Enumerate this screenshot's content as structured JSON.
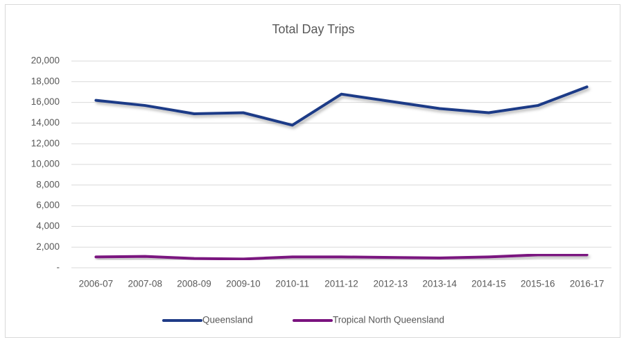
{
  "chart_data": {
    "type": "line",
    "title": "Total Day Trips",
    "categories": [
      "2006-07",
      "2007-08",
      "2008-09",
      "2009-10",
      "2010-11",
      "2011-12",
      "2012-13",
      "2013-14",
      "2014-15",
      "2015-16",
      "2016-17"
    ],
    "series": [
      {
        "name": "Queensland",
        "color": "#1f3b87",
        "values": [
          16200,
          15700,
          14900,
          15000,
          13800,
          16800,
          16100,
          15400,
          15000,
          15700,
          17500
        ]
      },
      {
        "name": "Tropical North Queensland",
        "color": "#7a137f",
        "values": [
          1050,
          1100,
          900,
          850,
          1050,
          1050,
          1000,
          950,
          1050,
          1250,
          1250
        ]
      }
    ],
    "ylim": [
      0,
      20000
    ],
    "yticks": [
      {
        "value": 0,
        "label": "-"
      },
      {
        "value": 2000,
        "label": "2,000"
      },
      {
        "value": 4000,
        "label": "4,000"
      },
      {
        "value": 6000,
        "label": "6,000"
      },
      {
        "value": 8000,
        "label": "8,000"
      },
      {
        "value": 10000,
        "label": "10,000"
      },
      {
        "value": 12000,
        "label": "12,000"
      },
      {
        "value": 14000,
        "label": "14,000"
      },
      {
        "value": 16000,
        "label": "16,000"
      },
      {
        "value": 18000,
        "label": "18,000"
      },
      {
        "value": 20000,
        "label": "20,000"
      }
    ],
    "grid": true,
    "legend": "bottom"
  }
}
